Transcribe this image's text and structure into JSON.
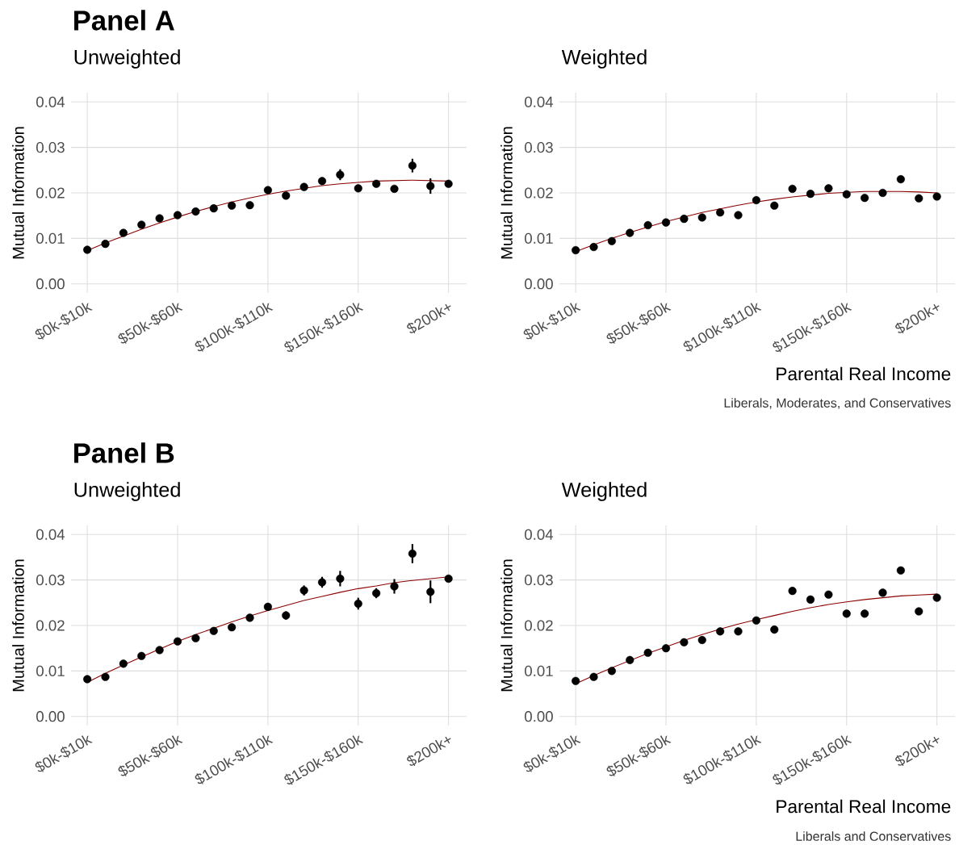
{
  "chart_data": [
    {
      "type": "scatter",
      "title": "Panel A",
      "subtitle": "Unweighted",
      "ylabel": "Mutual Information",
      "categories": [
        "$0k-$10k",
        null,
        null,
        null,
        null,
        "$50k-$60k",
        null,
        null,
        null,
        null,
        "$100k-$110k",
        null,
        null,
        null,
        null,
        "$150k-$160k",
        null,
        null,
        null,
        null,
        "$200k+"
      ],
      "series": [
        {
          "type": "scatter",
          "color": "#000000",
          "values": [
            0.0075,
            0.0088,
            0.0112,
            0.013,
            0.0144,
            0.0151,
            0.0159,
            0.0166,
            0.0172,
            0.0173,
            0.0206,
            0.0194,
            0.0213,
            0.0226,
            0.024,
            0.021,
            0.022,
            0.0209,
            0.026,
            0.0215,
            0.022
          ],
          "errors": [
            null,
            null,
            null,
            null,
            null,
            null,
            null,
            null,
            null,
            null,
            null,
            null,
            null,
            null,
            0.0012,
            null,
            null,
            null,
            0.0015,
            0.0017,
            null
          ]
        },
        {
          "type": "line",
          "color": "#8b0000",
          "marker": "none",
          "values": [
            0.0073,
            0.009,
            0.0105,
            0.012,
            0.0134,
            0.0147,
            0.0159,
            0.017,
            0.018,
            0.0189,
            0.0197,
            0.0204,
            0.021,
            0.0216,
            0.022,
            0.0223,
            0.0226,
            0.0227,
            0.0228,
            0.0227,
            0.0226
          ]
        }
      ],
      "ylim": [
        -0.002,
        0.042
      ],
      "yticks": [
        {
          "value": 0,
          "label": "0.00"
        },
        {
          "value": 0.01,
          "label": "0.01"
        },
        {
          "value": 0.02,
          "label": "0.02"
        },
        {
          "value": 0.03,
          "label": "0.03"
        },
        {
          "value": 0.04,
          "label": "0.04"
        }
      ],
      "grid": true,
      "marker": "circle"
    },
    {
      "type": "scatter",
      "subtitle": "Weighted",
      "xlabel": "Parental Real Income",
      "ylabel": "Mutual Information",
      "categories": [
        "$0k-$10k",
        null,
        null,
        null,
        null,
        "$50k-$60k",
        null,
        null,
        null,
        null,
        "$100k-$110k",
        null,
        null,
        null,
        null,
        "$150k-$160k",
        null,
        null,
        null,
        null,
        "$200k+"
      ],
      "series": [
        {
          "type": "scatter",
          "color": "#000000",
          "values": [
            0.0074,
            0.0081,
            0.0094,
            0.0112,
            0.0129,
            0.0135,
            0.0143,
            0.0146,
            0.0157,
            0.0151,
            0.0184,
            0.0172,
            0.0209,
            0.0198,
            0.021,
            0.0197,
            0.0189,
            0.02,
            0.023,
            0.0188,
            0.0192
          ]
        },
        {
          "type": "line",
          "color": "#8b0000",
          "marker": "none",
          "values": [
            0.0071,
            0.0086,
            0.01,
            0.0113,
            0.0125,
            0.0137,
            0.0147,
            0.0157,
            0.0165,
            0.0173,
            0.018,
            0.0186,
            0.0191,
            0.0195,
            0.0199,
            0.0201,
            0.0203,
            0.0203,
            0.0203,
            0.0202,
            0.02
          ]
        }
      ],
      "ylim": [
        -0.002,
        0.042
      ],
      "yticks": [
        {
          "value": 0,
          "label": "0.00"
        },
        {
          "value": 0.01,
          "label": "0.01"
        },
        {
          "value": 0.02,
          "label": "0.02"
        },
        {
          "value": 0.03,
          "label": "0.03"
        },
        {
          "value": 0.04,
          "label": "0.04"
        }
      ],
      "grid": true,
      "marker": "circle",
      "annotations": [
        "Liberals, Moderates, and Conservatives"
      ]
    },
    {
      "type": "scatter",
      "title": "Panel B",
      "subtitle": "Unweighted",
      "ylabel": "Mutual Information",
      "categories": [
        "$0k-$10k",
        null,
        null,
        null,
        null,
        "$50k-$60k",
        null,
        null,
        null,
        null,
        "$100k-$110k",
        null,
        null,
        null,
        null,
        "$150k-$160k",
        null,
        null,
        null,
        null,
        "$200k+"
      ],
      "series": [
        {
          "type": "scatter",
          "color": "#000000",
          "values": [
            0.0082,
            0.0087,
            0.0116,
            0.0133,
            0.0146,
            0.0165,
            0.0172,
            0.0188,
            0.0196,
            0.0217,
            0.0241,
            0.0222,
            0.0277,
            0.0295,
            0.0303,
            0.0248,
            0.0271,
            0.0286,
            0.0358,
            0.0274,
            0.0303
          ],
          "errors": [
            null,
            null,
            null,
            null,
            null,
            null,
            null,
            null,
            null,
            null,
            null,
            0.0009,
            0.0011,
            0.0012,
            0.0017,
            0.0013,
            0.0011,
            0.0016,
            0.0021,
            0.0025,
            null
          ]
        },
        {
          "type": "line",
          "color": "#8b0000",
          "marker": "none",
          "values": [
            0.0075,
            0.0095,
            0.0113,
            0.0131,
            0.0148,
            0.0165,
            0.018,
            0.0194,
            0.0208,
            0.0221,
            0.0233,
            0.0244,
            0.0255,
            0.0264,
            0.0273,
            0.0281,
            0.0287,
            0.0294,
            0.0299,
            0.0303,
            0.0307
          ]
        }
      ],
      "ylim": [
        -0.002,
        0.042
      ],
      "yticks": [
        {
          "value": 0,
          "label": "0.00"
        },
        {
          "value": 0.01,
          "label": "0.01"
        },
        {
          "value": 0.02,
          "label": "0.02"
        },
        {
          "value": 0.03,
          "label": "0.03"
        },
        {
          "value": 0.04,
          "label": "0.04"
        }
      ],
      "grid": true,
      "marker": "circle"
    },
    {
      "type": "scatter",
      "subtitle": "Weighted",
      "xlabel": "Parental Real Income",
      "ylabel": "Mutual Information",
      "categories": [
        "$0k-$10k",
        null,
        null,
        null,
        null,
        "$50k-$60k",
        null,
        null,
        null,
        null,
        "$100k-$110k",
        null,
        null,
        null,
        null,
        "$150k-$160k",
        null,
        null,
        null,
        null,
        "$200k+"
      ],
      "series": [
        {
          "type": "scatter",
          "color": "#000000",
          "values": [
            0.0078,
            0.0087,
            0.01,
            0.0124,
            0.014,
            0.015,
            0.0163,
            0.0168,
            0.0187,
            0.0187,
            0.0211,
            0.0191,
            0.0276,
            0.0257,
            0.0268,
            0.0226,
            0.0226,
            0.0272,
            0.0321,
            0.0231,
            0.0261
          ]
        },
        {
          "type": "line",
          "color": "#8b0000",
          "marker": "none",
          "values": [
            0.0072,
            0.009,
            0.0107,
            0.0123,
            0.0139,
            0.0153,
            0.0167,
            0.018,
            0.0192,
            0.0203,
            0.0213,
            0.0222,
            0.0231,
            0.0239,
            0.0246,
            0.0252,
            0.0257,
            0.0261,
            0.0265,
            0.0267,
            0.0269
          ]
        }
      ],
      "ylim": [
        -0.002,
        0.042
      ],
      "yticks": [
        {
          "value": 0,
          "label": "0.00"
        },
        {
          "value": 0.01,
          "label": "0.01"
        },
        {
          "value": 0.02,
          "label": "0.02"
        },
        {
          "value": 0.03,
          "label": "0.03"
        },
        {
          "value": 0.04,
          "label": "0.04"
        }
      ],
      "grid": true,
      "marker": "circle",
      "annotations": [
        "Liberals and Conservatives"
      ]
    }
  ]
}
